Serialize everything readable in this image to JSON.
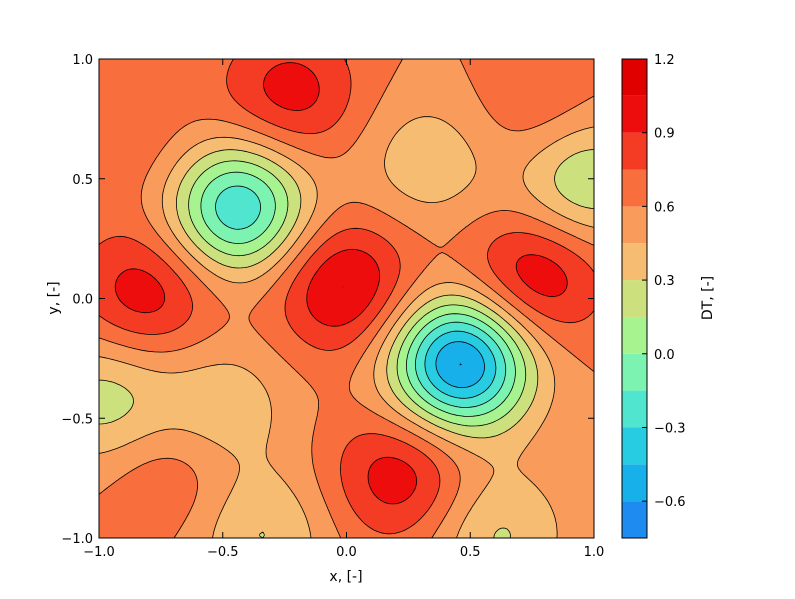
{
  "chart_data": {
    "type": "heatmap",
    "subtype": "filled-contour",
    "xlabel": "x, [-]",
    "ylabel": "y, [-]",
    "xlim": [
      -1.0,
      1.0
    ],
    "ylim": [
      -1.0,
      1.0
    ],
    "x_ticks": [
      -1.0,
      -0.5,
      0.0,
      0.5,
      1.0
    ],
    "x_tick_labels": [
      "−1.0",
      "−0.5",
      "0.0",
      "0.5",
      "1.0"
    ],
    "y_ticks": [
      -1.0,
      -0.5,
      0.0,
      0.5,
      1.0
    ],
    "y_tick_labels": [
      "−1.0",
      "−0.5",
      "0.0",
      "0.5",
      "1.0"
    ],
    "grid": false,
    "field": {
      "description_of_features": "peaks and troughs of DT over the unit square",
      "extrema": [
        {
          "kind": "min",
          "x": 0.46,
          "y": -0.27,
          "value": -0.6
        },
        {
          "kind": "min",
          "x": -0.44,
          "y": 0.38,
          "value": -0.25
        },
        {
          "kind": "max",
          "x": -0.01,
          "y": 0.05,
          "value": 1.05
        },
        {
          "kind": "max",
          "x": -0.81,
          "y": 0.02,
          "value": 0.95
        },
        {
          "kind": "max",
          "x": 0.76,
          "y": 0.09,
          "value": 0.95
        },
        {
          "kind": "max",
          "x": 0.22,
          "y": -0.74,
          "value": 0.95
        },
        {
          "kind": "max",
          "x": -0.23,
          "y": 0.85,
          "value": 0.95
        },
        {
          "kind": "min",
          "x": 0.33,
          "y": 0.57,
          "value": 0.35
        },
        {
          "kind": "min",
          "x": -0.51,
          "y": -0.45,
          "value": 0.35
        },
        {
          "kind": "max",
          "x": -0.7,
          "y": -0.73,
          "value": 0.65
        },
        {
          "kind": "max",
          "x": -0.8,
          "y": 0.62,
          "value": 0.65
        },
        {
          "kind": "max",
          "x": 0.8,
          "y": 0.75,
          "value": 0.62
        },
        {
          "kind": "min",
          "x": 0.95,
          "y": 0.5,
          "value": 0.2
        },
        {
          "kind": "min",
          "x": -0.98,
          "y": -0.42,
          "value": 0.25
        },
        {
          "kind": "min",
          "x": 0.6,
          "y": -0.98,
          "value": 0.3
        },
        {
          "kind": "min",
          "x": -0.35,
          "y": -0.98,
          "value": 0.3
        }
      ],
      "contour_levels": [
        -0.75,
        -0.6,
        -0.45,
        -0.3,
        -0.15,
        0.0,
        0.15,
        0.3,
        0.45,
        0.6,
        0.75,
        0.9,
        1.05,
        1.2
      ]
    },
    "colorbar": {
      "label": "DT, [-]",
      "range": [
        -0.75,
        1.2
      ],
      "ticks": [
        -0.6,
        -0.3,
        0.0,
        0.3,
        0.6,
        0.9,
        1.2
      ],
      "tick_labels": [
        "−0.6",
        "−0.3",
        "0.0",
        "0.3",
        "0.6",
        "0.9",
        "1.2"
      ],
      "band_colors": [
        "#1e8bf0",
        "#17b0ea",
        "#27cce2",
        "#4fe5cf",
        "#7cf3b0",
        "#a6f390",
        "#cde07e",
        "#f6bd72",
        "#f99b5a",
        "#f96e3d",
        "#f43c24",
        "#ee0d0d",
        "#e00000"
      ]
    }
  }
}
